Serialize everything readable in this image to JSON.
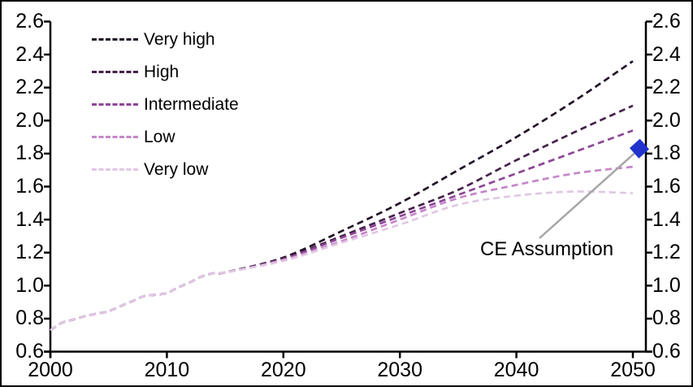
{
  "chart_data": {
    "type": "line",
    "title": "",
    "xlabel": "",
    "ylabel": "",
    "xlim": [
      2000,
      2051
    ],
    "ylim": [
      0.6,
      2.6
    ],
    "grid": false,
    "legend_position": "top-left-inside",
    "x_tick_labels": [
      "2000",
      "2010",
      "2020",
      "2030",
      "2040",
      "2050"
    ],
    "x_tick_years": [
      2000,
      2010,
      2020,
      2030,
      2040,
      2050
    ],
    "y_tick_labels": [
      "0.6",
      "0.8",
      "1.0",
      "1.2",
      "1.4",
      "1.6",
      "1.8",
      "2.0",
      "2.2",
      "2.4",
      "2.6"
    ],
    "y_tick_values": [
      0.6,
      0.8,
      1.0,
      1.2,
      1.4,
      1.6,
      1.8,
      2.0,
      2.2,
      2.4,
      2.6
    ],
    "history": {
      "years": [
        2000,
        2001,
        2002,
        2003,
        2004,
        2005,
        2006,
        2007,
        2008,
        2009,
        2010,
        2011,
        2012,
        2013,
        2014,
        2015
      ],
      "values": [
        0.73,
        0.775,
        0.795,
        0.815,
        0.83,
        0.845,
        0.875,
        0.905,
        0.935,
        0.945,
        0.955,
        0.99,
        1.02,
        1.055,
        1.075,
        1.08
      ]
    },
    "projection_years": [
      2015,
      2020,
      2025,
      2030,
      2035,
      2040,
      2045,
      2050
    ],
    "series": [
      {
        "name": "Very high",
        "color": "#221428",
        "values": [
          1.08,
          1.17,
          1.33,
          1.5,
          1.7,
          1.9,
          2.12,
          2.36
        ]
      },
      {
        "name": "High",
        "color": "#45224a",
        "values": [
          1.08,
          1.165,
          1.3,
          1.44,
          1.58,
          1.76,
          1.93,
          2.09
        ]
      },
      {
        "name": "Intermediate",
        "color": "#8e4796",
        "values": [
          1.08,
          1.16,
          1.29,
          1.42,
          1.55,
          1.68,
          1.81,
          1.94
        ]
      },
      {
        "name": "Low",
        "color": "#c687c9",
        "values": [
          1.08,
          1.155,
          1.27,
          1.4,
          1.53,
          1.61,
          1.68,
          1.72
        ]
      },
      {
        "name": "Very low",
        "color": "#e1c7e4",
        "values": [
          1.08,
          1.15,
          1.26,
          1.37,
          1.49,
          1.545,
          1.57,
          1.56
        ]
      }
    ],
    "annotation": {
      "label": "CE Assumption",
      "year": 2050,
      "value": 1.83,
      "marker": "diamond",
      "marker_color": "#2133cb",
      "leader_color": "#a6a6a6"
    }
  }
}
